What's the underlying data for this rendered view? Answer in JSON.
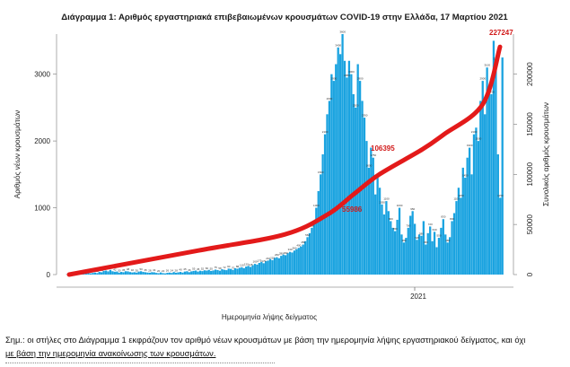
{
  "chart_data": {
    "type": "bar+line",
    "title": "Διάγραμμα 1: Αριθμός εργαστηριακά επιβεβαιωμένων κρουσμάτων COVID-19 στην Ελλάδα, 17 Μαρτίου 2021",
    "xlabel": "Ημερομηνία λήψης δείγματος",
    "ylabel_left": "Αριθμός νέων κρουσμάτων",
    "ylabel_right": "Συνολικός αριθμός κρουσμάτων",
    "x_tick_label": "2021",
    "ylim_left": [
      0,
      3600
    ],
    "yticks_left": [
      "0",
      "1000",
      "2000",
      "3000"
    ],
    "ylim_right": [
      0,
      240000
    ],
    "yticks_right": [
      "0",
      "50000",
      "100000",
      "150000",
      "200000"
    ],
    "series": [
      {
        "name": "bars",
        "type": "bar",
        "color": "#1aa3e0",
        "values": [
          3,
          2,
          4,
          5,
          2,
          6,
          8,
          12,
          10,
          15,
          20,
          18,
          25,
          30,
          22,
          40,
          35,
          55,
          60,
          48,
          70,
          50,
          42,
          45,
          30,
          40,
          35,
          50,
          48,
          38,
          32,
          36,
          30,
          45,
          50,
          40,
          35,
          30,
          28,
          36,
          34,
          25,
          20,
          32,
          22,
          18,
          26,
          30,
          24,
          38,
          28,
          34,
          40,
          30,
          45,
          50,
          36,
          48,
          55,
          60,
          45,
          58,
          52,
          64,
          60,
          70,
          55,
          62,
          75,
          68,
          58,
          80,
          72,
          66,
          90,
          85,
          70,
          95,
          88,
          102,
          110,
          96,
          120,
          130,
          115,
          140,
          160,
          150,
          175,
          190,
          170,
          200,
          210,
          230,
          215,
          250,
          260,
          245,
          280,
          300,
          290,
          320,
          340,
          330,
          360,
          380,
          400,
          420,
          450,
          500,
          560,
          620,
          700,
          800,
          1000,
          1250,
          1500,
          1800,
          2100,
          2400,
          2600,
          3000,
          2900,
          3150,
          3400,
          3300,
          3600,
          3200,
          2950,
          3200,
          3000,
          2700,
          2500,
          3150,
          2900,
          2600,
          2350,
          2000,
          1600,
          1900,
          1750,
          1200,
          1450,
          1300,
          1050,
          900,
          1100,
          950,
          800,
          700,
          650,
          820,
          1000,
          600,
          480,
          550,
          700,
          880,
          950,
          760,
          520,
          600,
          580,
          800,
          450,
          620,
          720,
          500,
          640,
          410,
          550,
          700,
          830,
          600,
          480,
          560,
          800,
          920,
          1100,
          1300,
          1150,
          1600,
          1450,
          1750,
          1900,
          1500,
          2100,
          2200,
          2000,
          2600,
          2900,
          2400,
          3100,
          2800,
          2700,
          3500,
          3200,
          1800,
          1150,
          3250
        ]
      },
      {
        "name": "cumulative",
        "type": "line",
        "color": "#e31a1a",
        "points": [
          [
            0,
            0
          ],
          [
            0.3,
            24000
          ],
          [
            0.5,
            40000
          ],
          [
            0.6,
            60000
          ],
          [
            0.66,
            80000
          ],
          [
            0.72,
            100000
          ],
          [
            0.82,
            125000
          ],
          [
            0.87,
            140000
          ],
          [
            0.96,
            170000
          ],
          [
            1.0,
            227247
          ]
        ]
      }
    ],
    "annotations": [
      {
        "text": "227247"
      },
      {
        "text": "55986"
      },
      {
        "text": "106395"
      }
    ]
  },
  "note": {
    "line1": "Σημ.: οι στήλες στο Διάγραμμα 1 εκφράζουν τον αριθμό νέων κρουσμάτων με βάση την ημερομηνία λήψης εργαστηριακού δείγματος, και όχι",
    "line2": "με βάση την ημερομηνία ανακοίνωσης των κρουσμάτων."
  }
}
